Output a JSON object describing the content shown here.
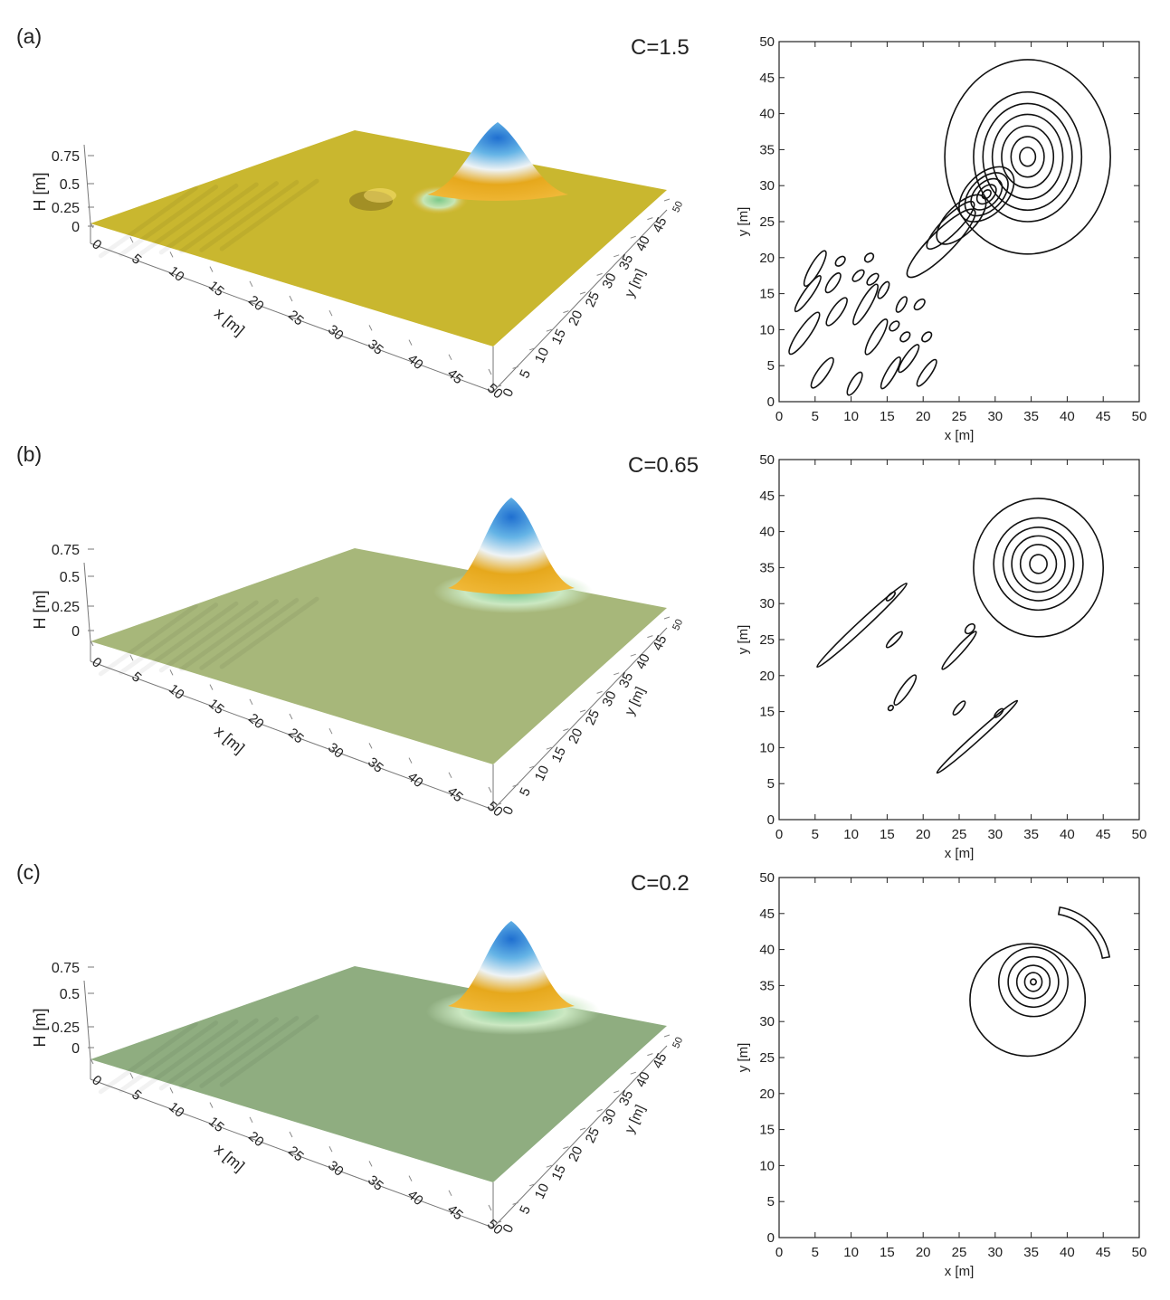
{
  "figure": {
    "colors": {
      "surface_a": "#c9b72f",
      "surface_b": "#a7b77a",
      "surface_c": "#8fad80",
      "peak_blue": "#1f6fd0",
      "peak_white": "#e8eef2",
      "peak_orange": "#e6a81c",
      "trough_green": "#8fd49a",
      "contour": "#111111"
    },
    "panels": [
      {
        "label": "(a)",
        "param_text": "C=1.5",
        "surface_color": "#c9b72f",
        "surface_axes": {
          "zlabel": "H [m]",
          "xlabel": "x [m]",
          "ylabel": "y [m]",
          "z_ticks": [
            "0",
            "0.25",
            "0.5",
            "0.75"
          ],
          "x_ticks": [
            "0",
            "5",
            "10",
            "15",
            "20",
            "25",
            "30",
            "35",
            "40",
            "45",
            "50"
          ],
          "y_ticks": [
            "0",
            "5",
            "10",
            "15",
            "20",
            "25",
            "30",
            "35",
            "40",
            "45",
            "50"
          ]
        },
        "contour_axes": {
          "xlabel": "x [m]",
          "ylabel": "y [m]",
          "xlim": [
            0,
            50
          ],
          "ylim": [
            0,
            50
          ],
          "x_ticks": [
            "0",
            "5",
            "10",
            "15",
            "20",
            "25",
            "30",
            "35",
            "40",
            "45",
            "50"
          ],
          "y_ticks": [
            "0",
            "5",
            "10",
            "15",
            "20",
            "25",
            "30",
            "35",
            "40",
            "45",
            "50"
          ]
        }
      },
      {
        "label": "(b)",
        "param_text": "C=0.65",
        "surface_color": "#a7b77a",
        "surface_axes": {
          "zlabel": "H [m]",
          "xlabel": "x [m]",
          "ylabel": "y [m]",
          "z_ticks": [
            "0",
            "0.25",
            "0.5",
            "0.75"
          ],
          "x_ticks": [
            "0",
            "5",
            "10",
            "15",
            "20",
            "25",
            "30",
            "35",
            "40",
            "45",
            "50"
          ],
          "y_ticks": [
            "0",
            "5",
            "10",
            "15",
            "20",
            "25",
            "30",
            "35",
            "40",
            "45",
            "50"
          ]
        },
        "contour_axes": {
          "xlabel": "x [m]",
          "ylabel": "y [m]",
          "xlim": [
            0,
            50
          ],
          "ylim": [
            0,
            50
          ],
          "x_ticks": [
            "0",
            "5",
            "10",
            "15",
            "20",
            "25",
            "30",
            "35",
            "40",
            "45",
            "50"
          ],
          "y_ticks": [
            "0",
            "5",
            "10",
            "15",
            "20",
            "25",
            "30",
            "35",
            "40",
            "45",
            "50"
          ]
        }
      },
      {
        "label": "(c)",
        "param_text": "C=0.2",
        "surface_color": "#8fad80",
        "surface_axes": {
          "zlabel": "H [m]",
          "xlabel": "x [m]",
          "ylabel": "y [m]",
          "z_ticks": [
            "0",
            "0.25",
            "0.5",
            "0.75"
          ],
          "x_ticks": [
            "0",
            "5",
            "10",
            "15",
            "20",
            "25",
            "30",
            "35",
            "40",
            "45",
            "50"
          ],
          "y_ticks": [
            "0",
            "5",
            "10",
            "15",
            "20",
            "25",
            "30",
            "35",
            "40",
            "45",
            "50"
          ]
        },
        "contour_axes": {
          "xlabel": "x [m]",
          "ylabel": "y [m]",
          "xlim": [
            0,
            50
          ],
          "ylim": [
            0,
            50
          ],
          "x_ticks": [
            "0",
            "5",
            "10",
            "15",
            "20",
            "25",
            "30",
            "35",
            "40",
            "45",
            "50"
          ],
          "y_ticks": [
            "0",
            "5",
            "10",
            "15",
            "20",
            "25",
            "30",
            "35",
            "40",
            "45",
            "50"
          ]
        }
      }
    ]
  },
  "chart_data": [
    {
      "type": "contour",
      "panel": "(a)",
      "xlim": [
        0,
        50
      ],
      "ylim": [
        0,
        50
      ],
      "contours": [
        {
          "kind": "ring",
          "cx": 34.5,
          "cy": 34.0,
          "rx": 11.5,
          "ry": 13.5,
          "level": 1
        },
        {
          "kind": "ring",
          "cx": 34.5,
          "cy": 34.0,
          "rx": 7.5,
          "ry": 9.0,
          "level": 2
        },
        {
          "kind": "ring",
          "cx": 34.5,
          "cy": 34.0,
          "rx": 6.2,
          "ry": 7.4,
          "level": 3
        },
        {
          "kind": "ring",
          "cx": 34.5,
          "cy": 34.0,
          "rx": 4.9,
          "ry": 5.9,
          "level": 4
        },
        {
          "kind": "ring",
          "cx": 34.5,
          "cy": 34.0,
          "rx": 3.6,
          "ry": 4.3,
          "level": 5
        },
        {
          "kind": "ring",
          "cx": 34.5,
          "cy": 34.0,
          "rx": 2.3,
          "ry": 2.8,
          "level": 6
        },
        {
          "kind": "ring",
          "cx": 34.5,
          "cy": 34.0,
          "rx": 1.1,
          "ry": 1.3,
          "level": 7
        },
        {
          "kind": "ring",
          "cx": 28.8,
          "cy": 28.8,
          "rx": 4.6,
          "ry": 2.8,
          "angle": 45,
          "level": 1
        },
        {
          "kind": "ring",
          "cx": 28.8,
          "cy": 28.8,
          "rx": 3.6,
          "ry": 2.2,
          "angle": 45,
          "level": 2
        },
        {
          "kind": "ring",
          "cx": 28.8,
          "cy": 28.8,
          "rx": 2.6,
          "ry": 1.6,
          "angle": 45,
          "level": 3
        },
        {
          "kind": "ring",
          "cx": 28.8,
          "cy": 28.8,
          "rx": 1.6,
          "ry": 1.0,
          "angle": 45,
          "level": 4
        },
        {
          "kind": "ring",
          "cx": 28.8,
          "cy": 28.8,
          "rx": 0.7,
          "ry": 0.5,
          "angle": 45,
          "level": 5
        },
        {
          "kind": "ring",
          "cx": 25.3,
          "cy": 25.3,
          "rx": 4.4,
          "ry": 2.0,
          "angle": 45,
          "level": 1
        },
        {
          "kind": "ring",
          "cx": 22.5,
          "cy": 22.0,
          "rx": 6.5,
          "ry": 1.6,
          "angle": 45,
          "level": 1
        },
        {
          "kind": "ring",
          "cx": 23.8,
          "cy": 24.5,
          "rx": 4.5,
          "ry": 1.2,
          "angle": 45,
          "level": 1
        },
        {
          "kind": "ring",
          "cx": 3.5,
          "cy": 9.5,
          "rx": 3.5,
          "ry": 0.8,
          "angle": 55,
          "level": 1
        },
        {
          "kind": "ring",
          "cx": 5.0,
          "cy": 18.5,
          "rx": 2.8,
          "ry": 0.7,
          "angle": 60,
          "level": 1
        },
        {
          "kind": "ring",
          "cx": 4.0,
          "cy": 15.0,
          "rx": 3.0,
          "ry": 0.6,
          "angle": 55,
          "level": 1
        },
        {
          "kind": "ring",
          "cx": 7.5,
          "cy": 16.5,
          "rx": 1.6,
          "ry": 0.6,
          "angle": 55,
          "level": 1
        },
        {
          "kind": "ring",
          "cx": 8.0,
          "cy": 12.5,
          "rx": 2.3,
          "ry": 0.7,
          "angle": 55,
          "level": 1
        },
        {
          "kind": "ring",
          "cx": 6.0,
          "cy": 4.0,
          "rx": 2.5,
          "ry": 0.7,
          "angle": 55,
          "level": 1
        },
        {
          "kind": "ring",
          "cx": 8.5,
          "cy": 19.5,
          "rx": 0.8,
          "ry": 0.5,
          "angle": 45,
          "level": 1
        },
        {
          "kind": "ring",
          "cx": 10.5,
          "cy": 2.5,
          "rx": 1.8,
          "ry": 0.6,
          "angle": 60,
          "level": 1
        },
        {
          "kind": "ring",
          "cx": 12.0,
          "cy": 13.5,
          "rx": 3.2,
          "ry": 0.7,
          "angle": 60,
          "level": 1
        },
        {
          "kind": "ring",
          "cx": 13.5,
          "cy": 9.0,
          "rx": 2.8,
          "ry": 0.7,
          "angle": 60,
          "level": 1
        },
        {
          "kind": "ring",
          "cx": 11.0,
          "cy": 17.5,
          "rx": 1.0,
          "ry": 0.5,
          "angle": 45,
          "level": 1
        },
        {
          "kind": "ring",
          "cx": 13.0,
          "cy": 17.0,
          "rx": 1.0,
          "ry": 0.5,
          "angle": 45,
          "level": 1
        },
        {
          "kind": "ring",
          "cx": 14.5,
          "cy": 15.5,
          "rx": 1.3,
          "ry": 0.5,
          "angle": 60,
          "level": 1
        },
        {
          "kind": "ring",
          "cx": 12.5,
          "cy": 20.0,
          "rx": 0.7,
          "ry": 0.5,
          "angle": 45,
          "level": 1
        },
        {
          "kind": "ring",
          "cx": 16.0,
          "cy": 10.5,
          "rx": 0.8,
          "ry": 0.5,
          "angle": 45,
          "level": 1
        },
        {
          "kind": "ring",
          "cx": 17.0,
          "cy": 13.5,
          "rx": 1.2,
          "ry": 0.5,
          "angle": 60,
          "level": 1
        },
        {
          "kind": "ring",
          "cx": 15.5,
          "cy": 4.0,
          "rx": 2.5,
          "ry": 0.6,
          "angle": 60,
          "level": 1
        },
        {
          "kind": "ring",
          "cx": 18.0,
          "cy": 6.0,
          "rx": 2.3,
          "ry": 0.6,
          "angle": 55,
          "level": 1
        },
        {
          "kind": "ring",
          "cx": 20.5,
          "cy": 4.0,
          "rx": 2.2,
          "ry": 0.6,
          "angle": 55,
          "level": 1
        },
        {
          "kind": "ring",
          "cx": 17.5,
          "cy": 9.0,
          "rx": 0.8,
          "ry": 0.5,
          "angle": 45,
          "level": 1
        },
        {
          "kind": "ring",
          "cx": 19.5,
          "cy": 13.5,
          "rx": 0.9,
          "ry": 0.5,
          "angle": 45,
          "level": 1
        },
        {
          "kind": "ring",
          "cx": 20.5,
          "cy": 9.0,
          "rx": 0.8,
          "ry": 0.5,
          "angle": 45,
          "level": 1
        }
      ]
    },
    {
      "type": "contour",
      "panel": "(b)",
      "xlim": [
        0,
        50
      ],
      "ylim": [
        0,
        50
      ],
      "contours": [
        {
          "kind": "ring",
          "cx": 36.0,
          "cy": 35.0,
          "rx": 9.0,
          "ry": 9.6,
          "level": 1
        },
        {
          "kind": "ring",
          "cx": 36.0,
          "cy": 35.5,
          "rx": 6.2,
          "ry": 6.4,
          "level": 2
        },
        {
          "kind": "ring",
          "cx": 36.0,
          "cy": 35.5,
          "rx": 4.9,
          "ry": 5.1,
          "level": 3
        },
        {
          "kind": "ring",
          "cx": 36.0,
          "cy": 35.5,
          "rx": 3.7,
          "ry": 3.9,
          "level": 4
        },
        {
          "kind": "ring",
          "cx": 36.0,
          "cy": 35.5,
          "rx": 2.5,
          "ry": 2.7,
          "level": 5
        },
        {
          "kind": "ring",
          "cx": 36.0,
          "cy": 35.5,
          "rx": 1.2,
          "ry": 1.3,
          "level": 6
        },
        {
          "kind": "ring",
          "cx": 11.5,
          "cy": 27.0,
          "rx": 8.5,
          "ry": 0.6,
          "angle": 43,
          "level": 1
        },
        {
          "kind": "ring",
          "cx": 16.0,
          "cy": 25.0,
          "rx": 1.5,
          "ry": 0.4,
          "angle": 45,
          "level": 1
        },
        {
          "kind": "ring",
          "cx": 15.5,
          "cy": 31.0,
          "rx": 0.8,
          "ry": 0.3,
          "angle": 45,
          "level": 1
        },
        {
          "kind": "ring",
          "cx": 17.5,
          "cy": 18.0,
          "rx": 2.5,
          "ry": 0.6,
          "angle": 55,
          "level": 1
        },
        {
          "kind": "ring",
          "cx": 15.5,
          "cy": 15.5,
          "rx": 0.4,
          "ry": 0.3,
          "angle": 45,
          "level": 1
        },
        {
          "kind": "ring",
          "cx": 25.0,
          "cy": 23.5,
          "rx": 3.5,
          "ry": 0.5,
          "angle": 48,
          "level": 1
        },
        {
          "kind": "ring",
          "cx": 26.5,
          "cy": 26.5,
          "rx": 0.8,
          "ry": 0.5,
          "angle": 45,
          "level": 1
        },
        {
          "kind": "ring",
          "cx": 25.0,
          "cy": 15.5,
          "rx": 1.2,
          "ry": 0.4,
          "angle": 50,
          "level": 1
        },
        {
          "kind": "ring",
          "cx": 27.5,
          "cy": 11.5,
          "rx": 7.5,
          "ry": 0.5,
          "angle": 42,
          "level": 1
        },
        {
          "kind": "ring",
          "cx": 30.5,
          "cy": 14.8,
          "rx": 0.8,
          "ry": 0.3,
          "angle": 45,
          "level": 1
        }
      ]
    },
    {
      "type": "contour",
      "panel": "(c)",
      "xlim": [
        0,
        50
      ],
      "ylim": [
        0,
        50
      ],
      "contours": [
        {
          "kind": "ring",
          "cx": 34.5,
          "cy": 33.0,
          "rx": 8.0,
          "ry": 7.8,
          "level": 1
        },
        {
          "kind": "ring",
          "cx": 35.3,
          "cy": 35.5,
          "rx": 4.8,
          "ry": 4.8,
          "level": 2
        },
        {
          "kind": "ring",
          "cx": 35.3,
          "cy": 35.5,
          "rx": 3.5,
          "ry": 3.5,
          "level": 3
        },
        {
          "kind": "ring",
          "cx": 35.3,
          "cy": 35.5,
          "rx": 2.3,
          "ry": 2.3,
          "level": 4
        },
        {
          "kind": "ring",
          "cx": 35.3,
          "cy": 35.5,
          "rx": 1.2,
          "ry": 1.3,
          "level": 5
        },
        {
          "kind": "ring",
          "cx": 35.3,
          "cy": 35.5,
          "rx": 0.4,
          "ry": 0.4,
          "level": 6
        },
        {
          "kind": "arc",
          "cx": 37.5,
          "cy": 37.5,
          "r": 8.0,
          "start": 10,
          "end": 80,
          "width": 1.0,
          "level": 1
        }
      ]
    }
  ]
}
